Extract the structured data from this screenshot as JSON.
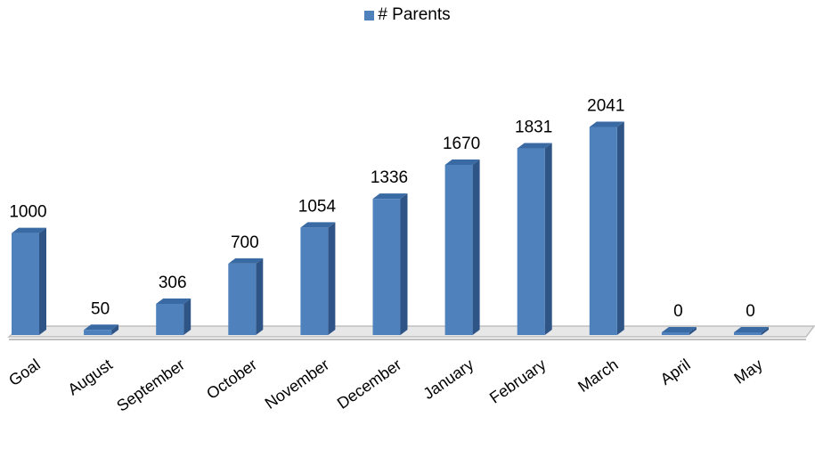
{
  "chart_data": {
    "type": "bar",
    "categories": [
      "Goal",
      "August",
      "September",
      "October",
      "November",
      "December",
      "January",
      "February",
      "March",
      "April",
      "May"
    ],
    "series": [
      {
        "name": "# Parents",
        "values": [
          1000,
          50,
          306,
          700,
          1054,
          1336,
          1670,
          1831,
          2041,
          0,
          0
        ]
      }
    ],
    "data_labels": [
      "1000",
      "50",
      "306",
      "700",
      "1054",
      "1336",
      "1670",
      "1831",
      "2041",
      "0",
      "0"
    ],
    "legend_position": "top",
    "grid": false,
    "three_d": true,
    "colors": {
      "bar_front": "#4f81bd",
      "bar_side": "#2f5587",
      "bar_top": "#3a6aa3",
      "floor": "#bfbfbf"
    }
  }
}
